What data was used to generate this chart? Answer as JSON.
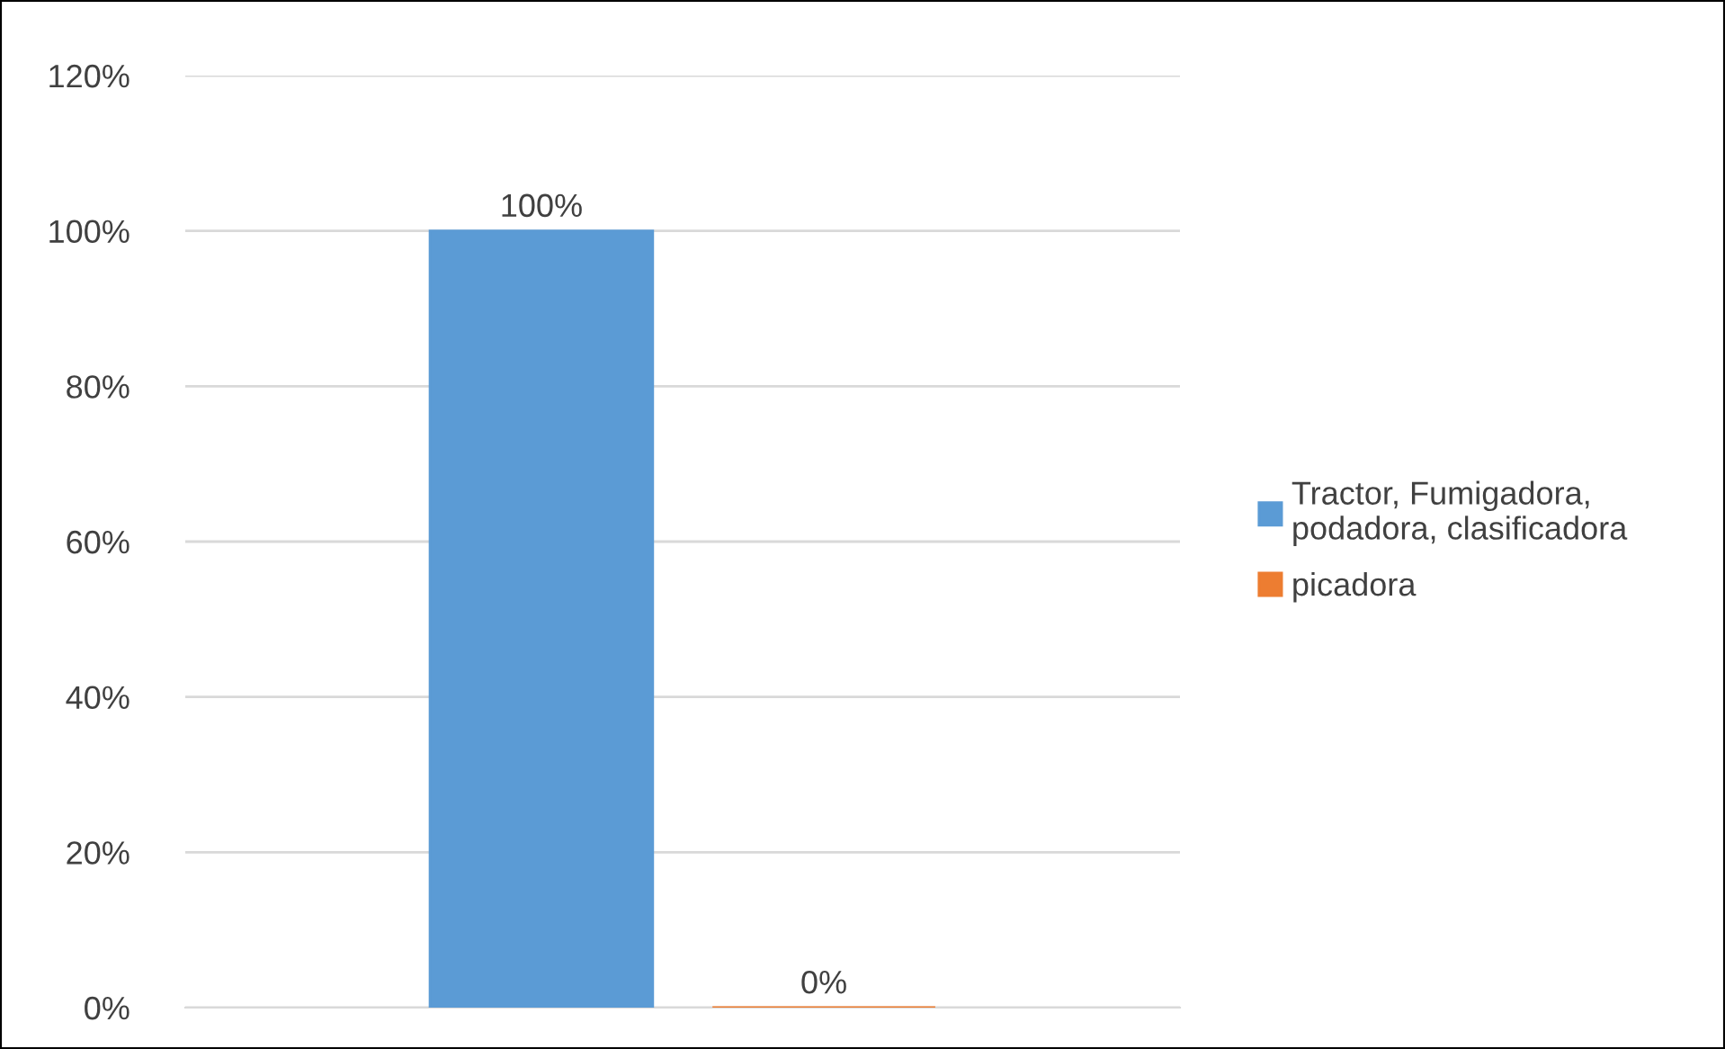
{
  "chart_data": {
    "type": "bar",
    "categories": [
      null
    ],
    "series": [
      {
        "name": "Tractor, Fumigadora,\npodadora, clasificadora",
        "color": "#5b9bd5",
        "values": [
          100
        ],
        "value_labels": [
          "100%"
        ]
      },
      {
        "name": "picadora",
        "color": "#ed7d31",
        "values": [
          0
        ],
        "value_labels": [
          "0%"
        ]
      }
    ],
    "ylim": [
      0,
      120
    ],
    "yticks": [
      {
        "value": 0,
        "label": "0%"
      },
      {
        "value": 20,
        "label": "20%"
      },
      {
        "value": 40,
        "label": "40%"
      },
      {
        "value": 60,
        "label": "60%"
      },
      {
        "value": 80,
        "label": "80%"
      },
      {
        "value": 100,
        "label": "100%"
      },
      {
        "value": 120,
        "label": "120%"
      }
    ],
    "grid": "y",
    "legend": "right",
    "tick_labels": "y"
  }
}
